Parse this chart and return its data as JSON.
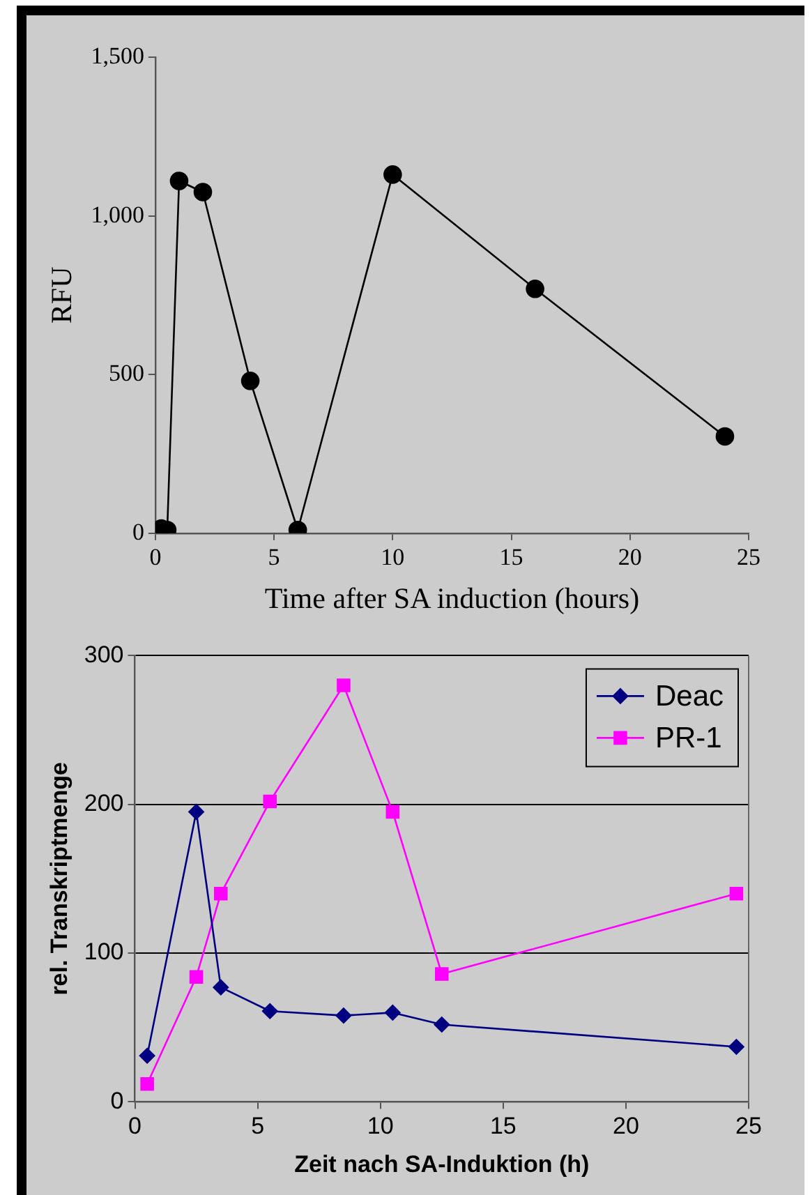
{
  "chart_data": [
    {
      "type": "line",
      "xlabel": "Time after SA induction (hours)",
      "ylabel": "RFU",
      "x": [
        0,
        0.25,
        0.5,
        1,
        2,
        4,
        6,
        10,
        16,
        24
      ],
      "series": [
        {
          "color": "#000000",
          "values": [
            5,
            15,
            10,
            1110,
            1075,
            480,
            10,
            1130,
            770,
            305
          ]
        }
      ],
      "xlim": [
        0,
        25
      ],
      "xticks": [
        0,
        5,
        10,
        15,
        20,
        25
      ],
      "ylim": [
        0,
        1500
      ],
      "yticks": [
        0,
        500,
        {
          "value": 1000,
          "label": "1,000"
        },
        {
          "value": 1500,
          "label": "1,500"
        }
      ],
      "grid": false,
      "legend": false,
      "marker": "circle"
    },
    {
      "type": "line",
      "xlabel": "Zeit nach SA-Induktion (h)",
      "ylabel": "rel. Transkriptmenge",
      "x": [
        0.5,
        2.5,
        3.5,
        5.5,
        8.5,
        10.5,
        12.5,
        24.5
      ],
      "series": [
        {
          "name": "Deac",
          "color": "#000080",
          "marker": "diamond",
          "values": [
            31,
            195,
            77,
            61,
            58,
            60,
            52,
            37
          ]
        },
        {
          "name": "PR-1",
          "color": "#ff00ff",
          "marker": "square",
          "values": [
            12,
            84,
            140,
            202,
            280,
            195,
            86,
            140
          ]
        }
      ],
      "xlim": [
        0,
        25
      ],
      "xticks": [
        0,
        5,
        10,
        15,
        20,
        25
      ],
      "ylim": [
        0,
        300
      ],
      "yticks": [
        0,
        100,
        200,
        300
      ],
      "grid": "y",
      "legend": "top right"
    }
  ]
}
